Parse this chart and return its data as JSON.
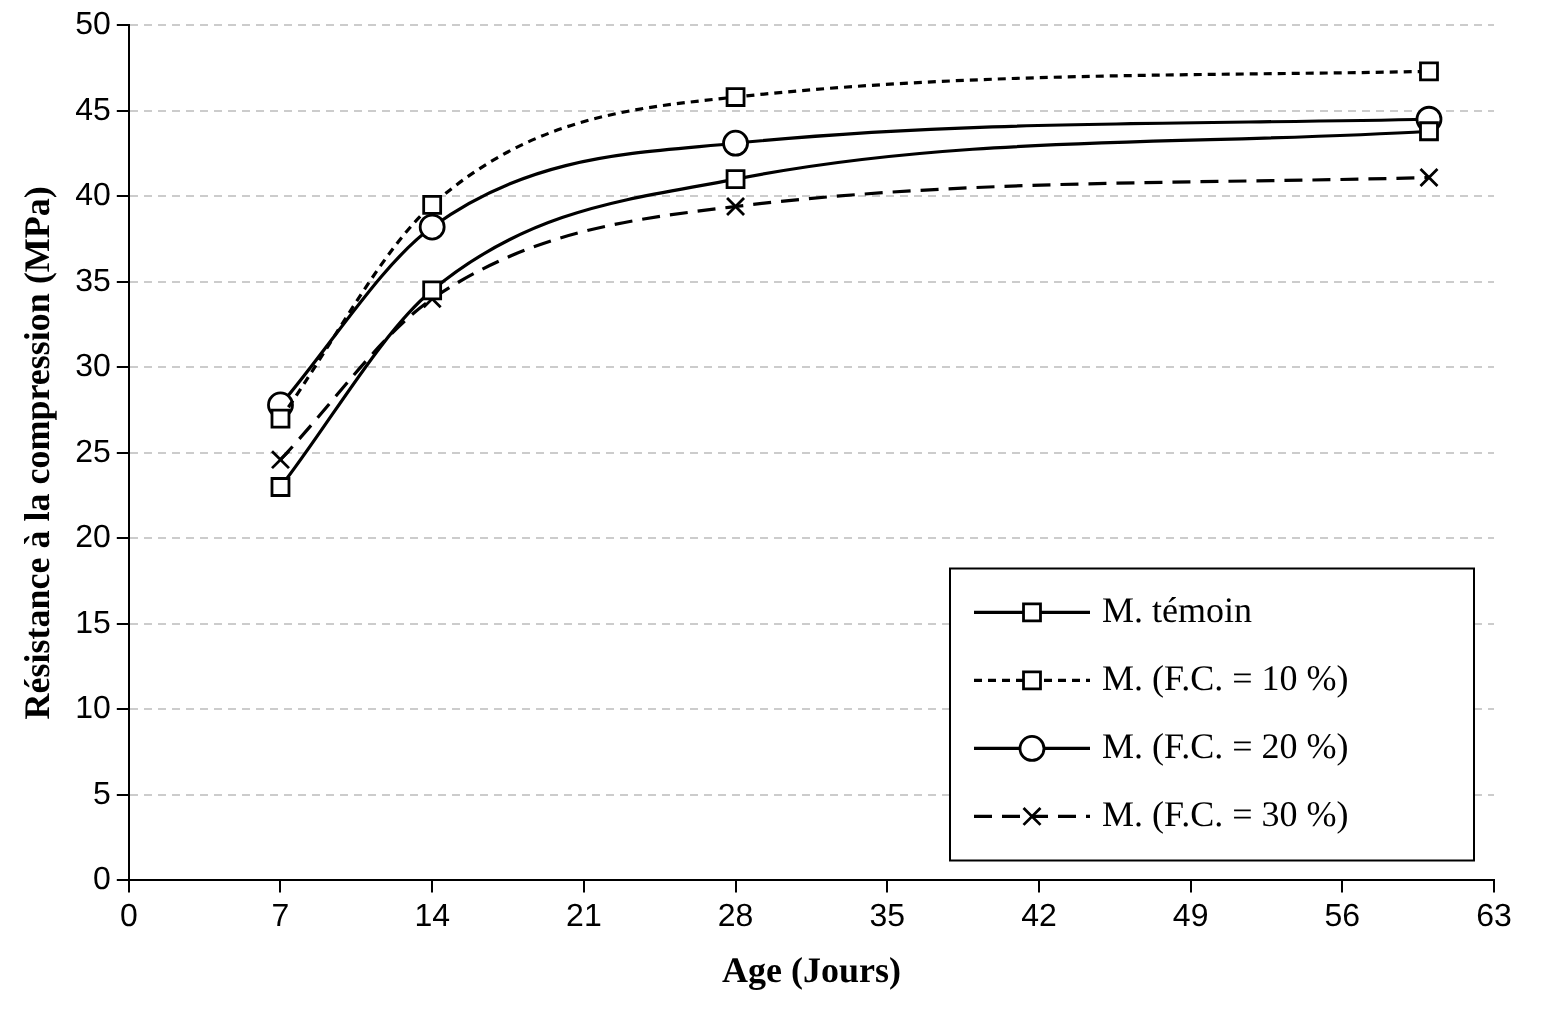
{
  "chart_data": {
    "type": "line",
    "xlabel": "Age (Jours)",
    "ylabel": "Résistance à la compression (MPa)",
    "x": [
      7,
      14,
      28,
      60
    ],
    "series": [
      {
        "name": "M. témoin",
        "color": "#000000",
        "values": [
          23.0,
          34.5,
          41.0,
          43.8
        ],
        "marker": "square",
        "line_style": "solid"
      },
      {
        "name": "M. (F.C. = 10 %)",
        "color": "#000000",
        "values": [
          27.0,
          39.5,
          45.8,
          47.3
        ],
        "marker": "square",
        "line_style": "dotted"
      },
      {
        "name": "M. (F.C. = 20 %)",
        "color": "#000000",
        "values": [
          27.8,
          38.2,
          43.1,
          44.5
        ],
        "marker": "circle",
        "line_style": "solid"
      },
      {
        "name": "M. (F.C. = 30 %)",
        "color": "#000000",
        "values": [
          24.6,
          34.0,
          39.4,
          41.1
        ],
        "marker": "cross",
        "line_style": "dashed"
      }
    ],
    "xlim": [
      0,
      63
    ],
    "xticks": [
      0,
      7,
      14,
      21,
      28,
      35,
      42,
      49,
      56,
      63
    ],
    "ylim": [
      0,
      50
    ],
    "yticks": [
      0,
      5,
      10,
      15,
      20,
      25,
      30,
      35,
      40,
      45,
      50
    ],
    "grid": "y",
    "legend": "bottom right"
  }
}
